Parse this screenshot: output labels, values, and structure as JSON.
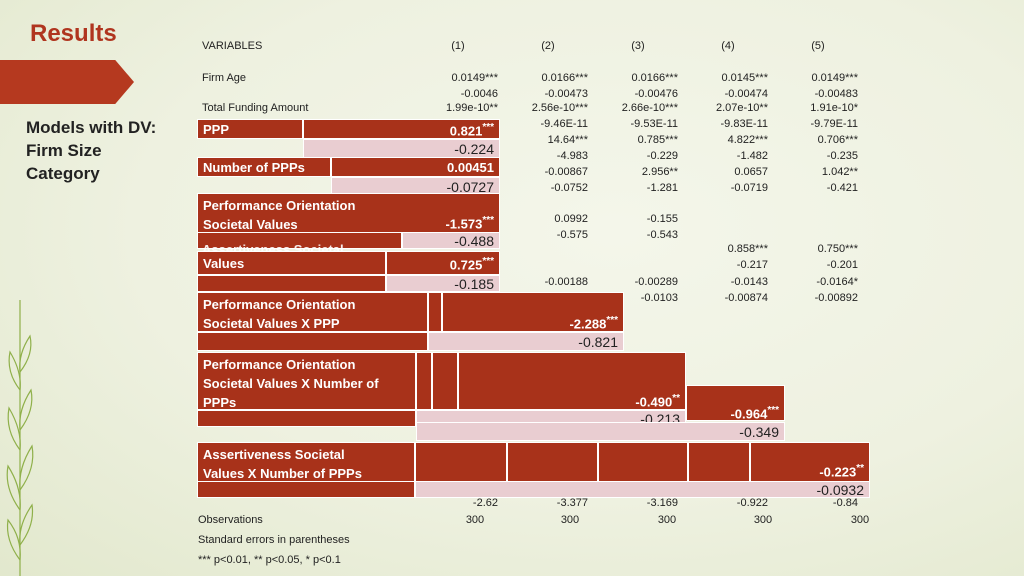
{
  "slide": {
    "title": "Results",
    "subtitle_lines": [
      "Models with DV:",
      "Firm Size",
      "Category"
    ]
  },
  "table": {
    "header": [
      "VARIABLES",
      "(1)",
      "(2)",
      "(3)",
      "(4)",
      "(5)"
    ],
    "firm_age": {
      "label": "Firm Age",
      "coef": [
        "0.0149***",
        "0.0166***",
        "0.0166***",
        "0.0145***",
        "0.0149***"
      ],
      "se": [
        "-0.0046",
        "-0.00473",
        "-0.00476",
        "-0.00474",
        "-0.00483"
      ]
    },
    "total_funding": {
      "label": "Total Funding Amount",
      "coef": [
        "1.99e-10**",
        "2.56e-10***",
        "2.66e-10***",
        "2.07e-10**",
        "1.91e-10*"
      ]
    },
    "bg_rows": [
      [
        "-9.46E-11",
        "-9.53E-11",
        "-9.83E-11",
        "-9.79E-11"
      ],
      [
        "14.64***",
        "0.785***",
        "4.822***",
        "0.706***"
      ],
      [
        "-4.983",
        "-0.229",
        "-1.482",
        "-0.235"
      ],
      [
        "-0.00867",
        "2.956**",
        "0.0657",
        "1.042**"
      ],
      [
        "-0.0752",
        "-1.281",
        "-0.0719",
        "-0.421"
      ]
    ],
    "bg_perf": [
      "0.0992",
      "-0.155",
      "-0.575",
      "-0.543"
    ],
    "bg_assert": [
      "0.858***",
      "0.750***",
      "-0.217",
      "-0.201"
    ],
    "bg_mid": [
      [
        "-0.00188",
        "-0.00289",
        "-0.0143",
        "-0.0164*"
      ],
      [
        "-0.0103",
        "-0.00874",
        "-0.00892"
      ]
    ],
    "constant_se": [
      "-2.62",
      "-3.377",
      "-3.169",
      "-0.922",
      "-0.84"
    ],
    "observations": {
      "label": "Observations",
      "values": [
        "300",
        "300",
        "300",
        "300",
        "300"
      ]
    },
    "footnotes": [
      "Standard errors in parentheses",
      "*** p<0.01, ** p<0.05, * p<0.1"
    ]
  },
  "highlights": {
    "ppp": {
      "label": "PPP",
      "coef": "0.821",
      "stars": "***",
      "se": "-0.224"
    },
    "num_ppps": {
      "label": "Number of PPPs",
      "coef": "0.00451",
      "se": "-0.0727"
    },
    "perf": {
      "label_lines": [
        "Performance Orientation",
        "Societal Values"
      ],
      "coef": "-1.573",
      "stars": "***",
      "se": "-0.488"
    },
    "assert": {
      "label_partial": "Assertiveness Societal",
      "label": "Values",
      "coef": "0.725",
      "stars": "***",
      "se": "-0.185"
    },
    "perf_x_ppp": {
      "label_lines": [
        "Performance Orientation",
        "Societal Values X PPP"
      ],
      "coef": "-2.288",
      "stars": "***",
      "se": "-0.821"
    },
    "perf_x_num": {
      "label_lines": [
        "Performance Orientation",
        "Societal Values X Number of",
        "PPPs"
      ],
      "coef": "-0.490",
      "stars": "**",
      "se": "-0.213"
    },
    "assert_x_ppp": {
      "coef": "-0.964",
      "stars": "***",
      "se": "-0.349"
    },
    "assert_x_num": {
      "label_lines": [
        "Assertiveness Societal",
        "Values X Number of PPPs"
      ],
      "coef": "-0.223",
      "stars": "**",
      "se": "-0.0932"
    }
  },
  "colors": {
    "accent": "#a8321a",
    "title": "#b0351f",
    "pink": "#e9cdd1",
    "leaf": "#8fb04a"
  }
}
